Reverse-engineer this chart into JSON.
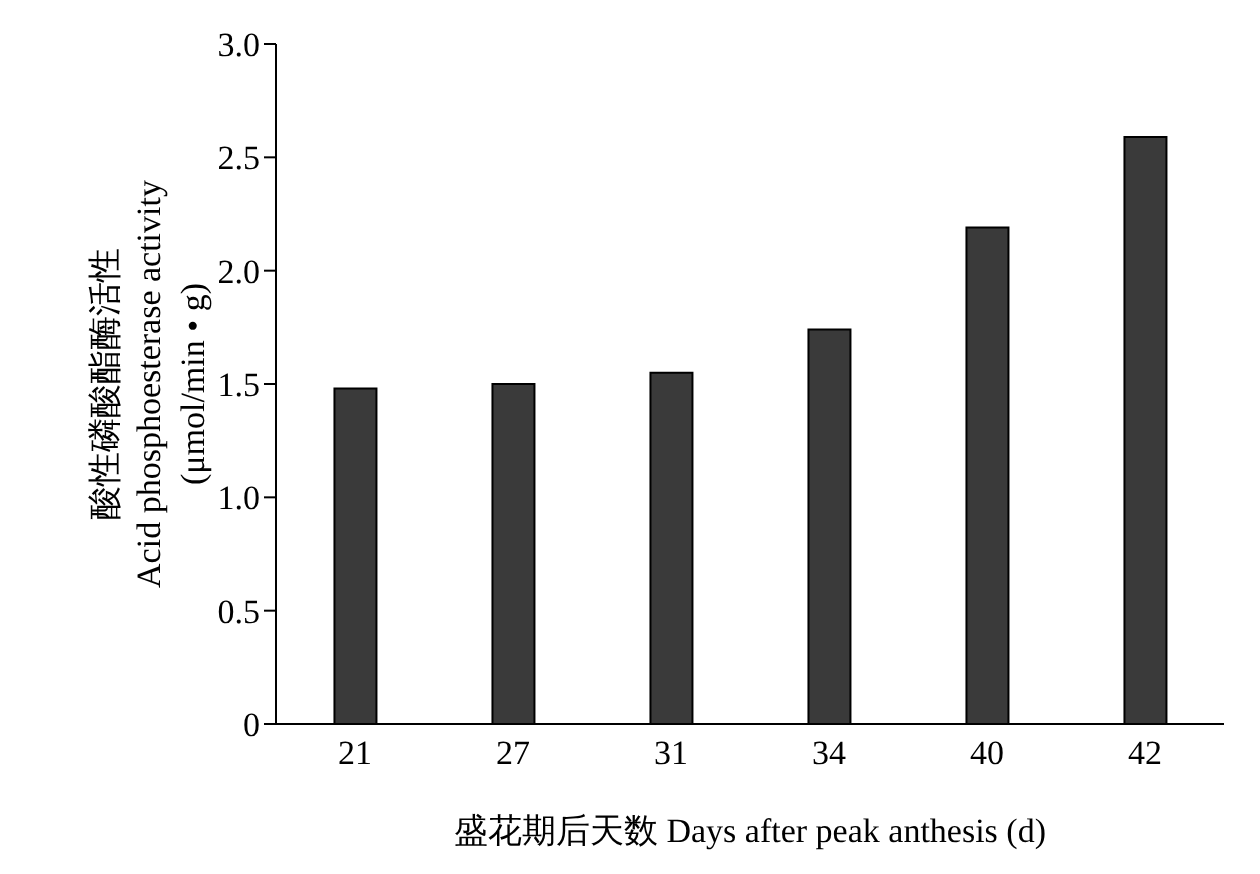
{
  "chart_data": {
    "type": "bar",
    "xlabel": "盛花期后天数 Days after peak anthesis (d)",
    "ylabel": "酸性磷酸酯酶活性\nAcid phosphoesterase activity\n(μmol/min • g)",
    "categories": [
      "21",
      "27",
      "31",
      "34",
      "40",
      "42"
    ],
    "values": [
      1.48,
      1.5,
      1.55,
      1.74,
      2.19,
      2.59
    ],
    "color": "#3a3a3a",
    "ylim": [
      0,
      3
    ],
    "yticks": [
      0,
      {
        "value": 0.5,
        "label": "0.5"
      },
      {
        "value": 1,
        "label": "1.0"
      },
      {
        "value": 1.5,
        "label": "1.5"
      },
      {
        "value": 2,
        "label": "2.0"
      },
      {
        "value": 2.5,
        "label": "2.5"
      },
      {
        "value": 3,
        "label": "3.0"
      }
    ],
    "grid": false
  }
}
